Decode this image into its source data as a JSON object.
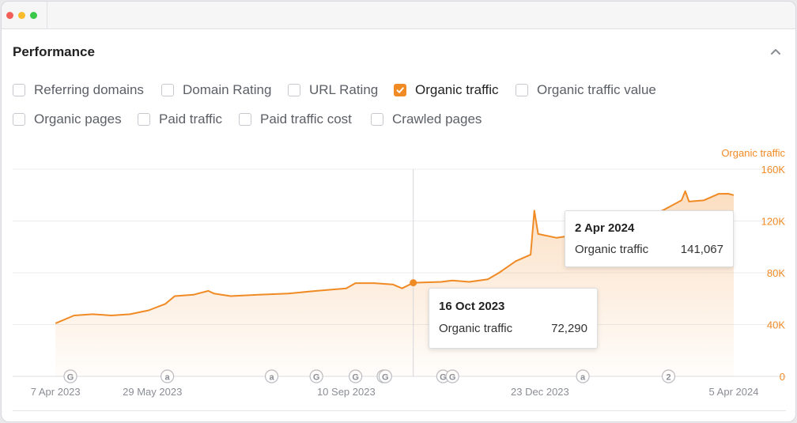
{
  "window": {
    "accent_color": "#f08a24"
  },
  "panel": {
    "title": "Performance",
    "collapse_icon": "chevron-up-icon"
  },
  "metrics": [
    {
      "label": "Referring domains",
      "checked": false
    },
    {
      "label": "Domain Rating",
      "checked": false
    },
    {
      "label": "URL Rating",
      "checked": false
    },
    {
      "label": "Organic traffic",
      "checked": true
    },
    {
      "label": "Organic traffic value",
      "checked": false
    },
    {
      "label": "Organic pages",
      "checked": false
    },
    {
      "label": "Paid traffic",
      "checked": false
    },
    {
      "label": "Paid traffic cost",
      "checked": false
    },
    {
      "label": "Crawled pages",
      "checked": false
    }
  ],
  "chart_data": {
    "type": "area",
    "series": [
      {
        "name": "Organic traffic",
        "color": "#f08a24",
        "points": [
          [
            "2023-04-07",
            41000
          ],
          [
            "2023-04-17",
            47000
          ],
          [
            "2023-04-27",
            48000
          ],
          [
            "2023-05-07",
            47000
          ],
          [
            "2023-05-17",
            48000
          ],
          [
            "2023-05-27",
            51000
          ],
          [
            "2023-06-05",
            56000
          ],
          [
            "2023-06-10",
            62000
          ],
          [
            "2023-06-20",
            63000
          ],
          [
            "2023-06-28",
            66000
          ],
          [
            "2023-07-01",
            64000
          ],
          [
            "2023-07-10",
            62000
          ],
          [
            "2023-07-25",
            63000
          ],
          [
            "2023-08-10",
            64000
          ],
          [
            "2023-08-25",
            66000
          ],
          [
            "2023-09-10",
            68000
          ],
          [
            "2023-09-15",
            72000
          ],
          [
            "2023-09-25",
            72000
          ],
          [
            "2023-10-05",
            71000
          ],
          [
            "2023-10-10",
            68000
          ],
          [
            "2023-10-16",
            72290
          ],
          [
            "2023-10-31",
            73000
          ],
          [
            "2023-11-06",
            74000
          ],
          [
            "2023-11-15",
            73000
          ],
          [
            "2023-11-25",
            75000
          ],
          [
            "2023-12-01",
            80000
          ],
          [
            "2023-12-10",
            89000
          ],
          [
            "2023-12-18",
            94000
          ],
          [
            "2023-12-20",
            128000
          ],
          [
            "2023-12-22",
            110000
          ],
          [
            "2024-01-01",
            107000
          ],
          [
            "2024-01-15",
            110000
          ],
          [
            "2024-01-30",
            113000
          ],
          [
            "2024-02-15",
            120000
          ],
          [
            "2024-02-28",
            129000
          ],
          [
            "2024-03-08",
            136000
          ],
          [
            "2024-03-10",
            143000
          ],
          [
            "2024-03-12",
            135000
          ],
          [
            "2024-03-20",
            136000
          ],
          [
            "2024-03-28",
            141000
          ],
          [
            "2024-04-02",
            141067
          ],
          [
            "2024-04-05",
            140000
          ]
        ]
      }
    ],
    "x_ticks": [
      "7 Apr 2023",
      "29 May 2023",
      "10 Sep 2023",
      "23 Dec 2023",
      "5 Apr 2024"
    ],
    "x_tick_dates": [
      "2023-04-07",
      "2023-05-29",
      "2023-09-10",
      "2023-12-23",
      "2024-04-05"
    ],
    "xlim": [
      "2023-03-15",
      "2024-04-05"
    ],
    "y_ticks": [
      "160K",
      "120K",
      "80K",
      "40K",
      "0"
    ],
    "y_tick_values": [
      160000,
      120000,
      80000,
      40000,
      0
    ],
    "ylim": [
      0,
      160000
    ],
    "y_axis_side": "right",
    "y_axis_title": "Organic traffic",
    "grid": true,
    "hover_date": "2023-10-16",
    "tooltips": [
      {
        "date": "16 Oct 2023",
        "label": "Organic traffic",
        "value": "72,290"
      },
      {
        "date": "2 Apr 2024",
        "label": "Organic traffic",
        "value": "141,067"
      }
    ],
    "annotations": [
      {
        "date": "2023-04-15",
        "label": "G"
      },
      {
        "date": "2023-06-06",
        "label": "a"
      },
      {
        "date": "2023-08-01",
        "label": "a"
      },
      {
        "date": "2023-08-25",
        "label": "G"
      },
      {
        "date": "2023-09-15",
        "label": "G"
      },
      {
        "date": "2023-09-30",
        "label": "G"
      },
      {
        "date": "2023-10-01",
        "label": "G"
      },
      {
        "date": "2023-11-01",
        "label": "G"
      },
      {
        "date": "2023-11-06",
        "label": "G"
      },
      {
        "date": "2024-01-15",
        "label": "a"
      },
      {
        "date": "2024-03-01",
        "label": "2"
      }
    ]
  }
}
